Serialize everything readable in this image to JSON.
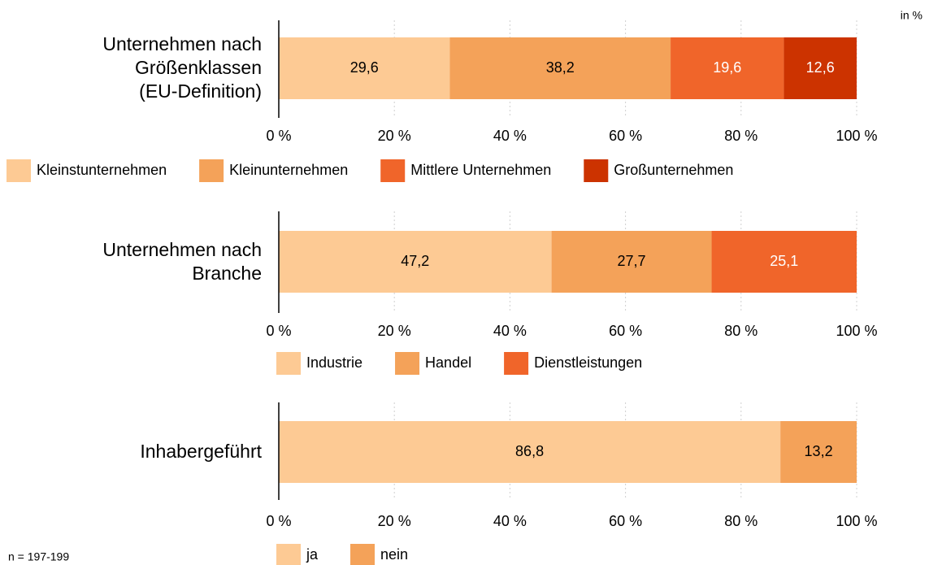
{
  "unit": "in %",
  "note": "n = 197-199",
  "chart_data": [
    {
      "type": "bar",
      "orientation": "horizontal",
      "stacked": true,
      "categories": [
        "Unternehmen nach\nGrößenklassen\n(EU-Definition)"
      ],
      "series": [
        {
          "name": "Kleinstunternehmen",
          "color": "#fdca94",
          "values": [
            29.6
          ],
          "value_labels": [
            "29,6"
          ]
        },
        {
          "name": "Kleinunternehmen",
          "color": "#f4a259",
          "values": [
            38.2
          ],
          "value_labels": [
            "38,2"
          ]
        },
        {
          "name": "Mittlere Unternehmen",
          "color": "#f0652a",
          "values": [
            19.6
          ],
          "value_labels": [
            "19,6"
          ]
        },
        {
          "name": "Großunternehmen",
          "color": "#cc3300",
          "values": [
            12.6
          ],
          "value_labels": [
            "12,6"
          ]
        }
      ],
      "xlim": [
        0,
        100
      ],
      "xticks": [
        {
          "value": 0,
          "label": "0 %"
        },
        {
          "value": 20,
          "label": "20 %"
        },
        {
          "value": 40,
          "label": "40 %"
        },
        {
          "value": 60,
          "label": "60 %"
        },
        {
          "value": 80,
          "label": "80 %"
        },
        {
          "value": 100,
          "label": "100 %"
        }
      ],
      "grid": true,
      "legend": "bottom"
    },
    {
      "type": "bar",
      "orientation": "horizontal",
      "stacked": true,
      "categories": [
        "Unternehmen nach\nBranche"
      ],
      "series": [
        {
          "name": "Industrie",
          "color": "#fdca94",
          "values": [
            47.2
          ],
          "value_labels": [
            "47,2"
          ]
        },
        {
          "name": "Handel",
          "color": "#f4a259",
          "values": [
            27.7
          ],
          "value_labels": [
            "27,7"
          ]
        },
        {
          "name": "Dienstleistungen",
          "color": "#f0652a",
          "values": [
            25.1
          ],
          "value_labels": [
            "25,1"
          ]
        }
      ],
      "xlim": [
        0,
        100
      ],
      "xticks": [
        {
          "value": 0,
          "label": "0 %"
        },
        {
          "value": 20,
          "label": "20 %"
        },
        {
          "value": 40,
          "label": "40 %"
        },
        {
          "value": 60,
          "label": "60 %"
        },
        {
          "value": 80,
          "label": "80 %"
        },
        {
          "value": 100,
          "label": "100 %"
        }
      ],
      "grid": true,
      "legend": "bottom"
    },
    {
      "type": "bar",
      "orientation": "horizontal",
      "stacked": true,
      "categories": [
        "Inhabergeführt"
      ],
      "series": [
        {
          "name": "ja",
          "color": "#fdca94",
          "values": [
            86.8
          ],
          "value_labels": [
            "86,8"
          ]
        },
        {
          "name": "nein",
          "color": "#f4a259",
          "values": [
            13.2
          ],
          "value_labels": [
            "13,2"
          ]
        }
      ],
      "xlim": [
        0,
        100
      ],
      "xticks": [
        {
          "value": 0,
          "label": "0 %"
        },
        {
          "value": 20,
          "label": "20 %"
        },
        {
          "value": 40,
          "label": "40 %"
        },
        {
          "value": 60,
          "label": "60 %"
        },
        {
          "value": 80,
          "label": "80 %"
        },
        {
          "value": 100,
          "label": "100 %"
        }
      ],
      "grid": true,
      "legend": "bottom"
    }
  ]
}
